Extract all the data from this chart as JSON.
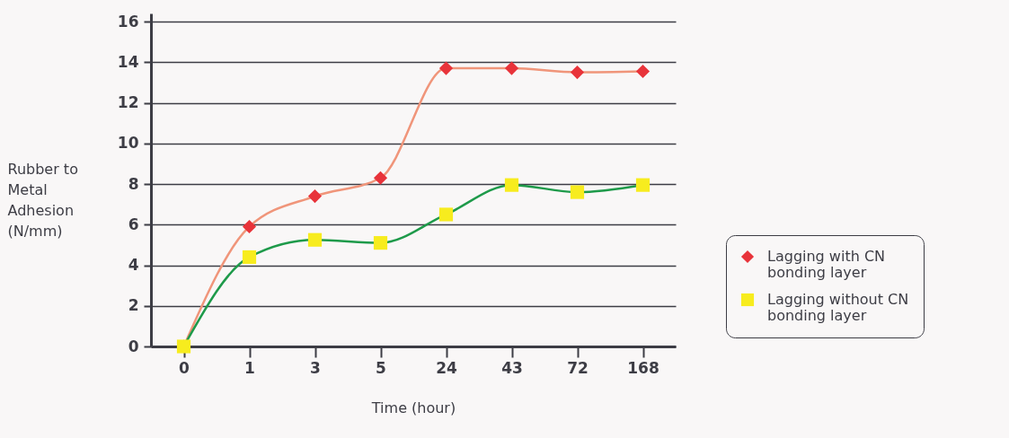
{
  "chart_data": {
    "type": "line",
    "xlabel": "Time (hour)",
    "ylabel": "Rubber to Metal Adhesion (N/mm)",
    "categories": [
      "0",
      "1",
      "3",
      "5",
      "24",
      "43",
      "72",
      "168"
    ],
    "series": [
      {
        "name": "Lagging with CN bonding layer",
        "color": "#f0957a",
        "marker": "diamond",
        "colors": [
          "#e8333a",
          "#e8333a",
          "#e8333a",
          "#e8333a",
          "#e8333a",
          "#e8333a",
          "#e8333a",
          "#e8333a"
        ],
        "values": [
          0,
          5.9,
          7.4,
          8.3,
          13.7,
          13.7,
          13.5,
          13.55
        ]
      },
      {
        "name": "Lagging without CN bonding layer",
        "color": "#1e9a4a",
        "marker": "square",
        "colors": [
          "#f7ec1e",
          "#f7ec1e",
          "#f7ec1e",
          "#f7ec1e",
          "#f7ec1e",
          "#f7ec1e",
          "#f7ec1e",
          "#f7ec1e"
        ],
        "values": [
          0,
          4.4,
          5.25,
          5.1,
          6.5,
          7.95,
          7.6,
          7.95
        ]
      }
    ],
    "ylim": [
      0,
      16.4
    ],
    "yticks": [
      0,
      2,
      4,
      6,
      8,
      10,
      12,
      14,
      16
    ],
    "grid": "y",
    "legend": "right",
    "line_style": "solid"
  }
}
